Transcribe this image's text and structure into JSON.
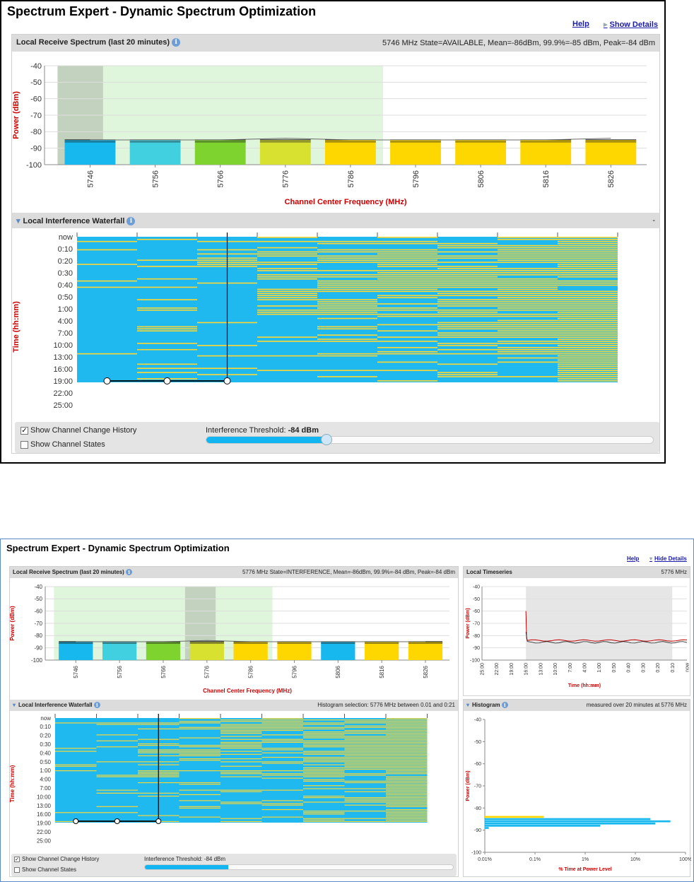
{
  "colors": {
    "blue": "#16b8ee",
    "cyan": "#40d0e0",
    "green": "#7ed32e",
    "lime": "#d8e030",
    "yellow": "#ffd700",
    "wfblue": "#1fb8ef",
    "wfyellow": "#fdd835",
    "axislabel": "#cc0000",
    "link": "#1a1aa6",
    "red": "#c40000"
  },
  "top": {
    "app_title": "Spectrum Expert - Dynamic Spectrum Optimization",
    "help_link": "Help",
    "details_link": "Show Details",
    "spectrum": {
      "title": "Local Receive Spectrum (last 20 minutes)",
      "info_icon": "i",
      "status": "5746 MHz State=AVAILABLE, Mean=-86dBm, 99.9%=-85 dBm, Peak=-84 dBm"
    },
    "waterfall": {
      "title": "Local Interference Waterfall",
      "info_icon": "i",
      "right_text": "-"
    },
    "controls": {
      "history_label": "Show Channel Change History",
      "history_checked": true,
      "states_label": "Show Channel States",
      "states_checked": false,
      "threshold_label": "Interference Threshold: ",
      "threshold_value": "-84 dBm",
      "threshold_fraction": 0.27
    }
  },
  "bottom": {
    "app_title": "Spectrum Expert - Dynamic Spectrum Optimization",
    "help_link": "Help",
    "details_link": "Hide Details",
    "spectrum": {
      "title": "Local Receive Spectrum (last 20 minutes)",
      "info_icon": "i",
      "status": "5776 MHz State=INTERFERENCE, Mean=-86dBm, 99.9%=-84 dBm, Peak=-84 dBm"
    },
    "timeseries": {
      "title": "Local Timeseries",
      "right_text": "5776 MHz"
    },
    "waterfall": {
      "title": "Local Interference Waterfall",
      "info_icon": "i",
      "right_text": "Histogram selection: 5776 MHz between 0.01 and 0:21"
    },
    "histogram": {
      "title": "Histogram",
      "info_icon": "i",
      "right_text": "measured over 20 minutes at 5776 MHz"
    },
    "controls": {
      "history_label": "Show Channel Change History",
      "history_checked": true,
      "states_label": "Show Channel States",
      "states_checked": false,
      "threshold_label": "Interference Threshold: -84 dBm",
      "threshold_fraction": 0.27
    }
  },
  "chart_data": [
    {
      "type": "bar",
      "id": "spectrum-top",
      "xlabel": "Channel Center Frequency (MHz)",
      "ylabel": "Power (dBm)",
      "ylim": [
        -100,
        -40
      ],
      "yticks": [
        "-40",
        "-50",
        "-60",
        "-70",
        "-80",
        "-90",
        "-100"
      ],
      "categories": [
        "5746",
        "5756",
        "5766",
        "5776",
        "5786",
        "5796",
        "5806",
        "5816",
        "5826"
      ],
      "values": [
        -85,
        -85,
        -85,
        -85,
        -85,
        -85,
        -85,
        -85,
        -85
      ],
      "bar_colors": [
        "blue",
        "cyan",
        "green",
        "lime",
        "yellow",
        "yellow",
        "yellow",
        "yellow",
        "yellow"
      ],
      "mean_line": [
        -85,
        -85,
        -85,
        -84,
        -85,
        -85,
        -85,
        -85,
        -84
      ],
      "shaded_channels": [
        0,
        4
      ],
      "selected_channel": 0
    },
    {
      "type": "heatmap",
      "id": "waterfall-top",
      "ylabel": "Time (hh:mm)",
      "time_ticks": [
        "now",
        "0:10",
        "0:20",
        "0:30",
        "0:40",
        "0:50",
        "1:00",
        "4:00",
        "7:00",
        "10:00",
        "13:00",
        "16:00",
        "19:00",
        "22:00",
        "25:00"
      ]
    },
    {
      "type": "bar",
      "id": "spectrum-bottom",
      "xlabel": "Channel Center Frequency (MHz)",
      "ylabel": "Power (dBm)",
      "ylim": [
        -100,
        -40
      ],
      "yticks": [
        "-40",
        "-50",
        "-60",
        "-70",
        "-80",
        "-90",
        "-100"
      ],
      "categories": [
        "5746",
        "5756",
        "5766",
        "5776",
        "5786",
        "5796",
        "5806",
        "5816",
        "5826"
      ],
      "values": [
        -85,
        -85,
        -85,
        -85,
        -85,
        -85,
        -85,
        -85,
        -85
      ],
      "bar_colors": [
        "blue",
        "cyan",
        "green",
        "lime",
        "yellow",
        "yellow",
        "blue",
        "yellow",
        "yellow"
      ],
      "mean_line": [
        -85,
        -85,
        -85,
        -84,
        -85,
        -85,
        -85,
        -85,
        -85
      ],
      "shaded_channels": [
        0,
        4
      ],
      "selected_channel": 3
    },
    {
      "type": "line",
      "id": "timeseries",
      "xlabel": "Time (hh:mm)",
      "ylabel": "Power (dBm)",
      "ylim": [
        -100,
        -40
      ],
      "yticks": [
        "-40",
        "-50",
        "-60",
        "-70",
        "-80",
        "-90",
        "-100"
      ],
      "xticks": [
        "25:00",
        "22:00",
        "19:00",
        "16:00",
        "13:00",
        "10:00",
        "7:00",
        "4:00",
        "1:00",
        "0:50",
        "0:40",
        "0:30",
        "0:20",
        "0:10",
        "now"
      ]
    },
    {
      "type": "heatmap",
      "id": "waterfall-bottom",
      "ylabel": "Time (hh:mm)",
      "time_ticks": [
        "now",
        "0:10",
        "0:20",
        "0:30",
        "0:40",
        "0:50",
        "1:00",
        "4:00",
        "7:00",
        "10:00",
        "13:00",
        "16:00",
        "19:00",
        "22:00",
        "25:00"
      ]
    },
    {
      "type": "bar",
      "id": "histogram",
      "orientation": "horizontal",
      "xlabel": "% Time at Power Level",
      "ylabel": "Power (dBm)",
      "xscale": "log",
      "xticks": [
        "0.01%",
        "0.1%",
        "1%",
        "10%",
        "100%"
      ],
      "yticks": [
        "-40",
        "-50",
        "-60",
        "-70",
        "-80",
        "-90",
        "-100"
      ],
      "bars": [
        {
          "power": -84,
          "percent": 0.15,
          "color": "yellow"
        },
        {
          "power": -85,
          "percent": 20,
          "color": "blue"
        },
        {
          "power": -86,
          "percent": 50,
          "color": "blue"
        },
        {
          "power": -87,
          "percent": 25,
          "color": "blue"
        },
        {
          "power": -88,
          "percent": 2,
          "color": "blue"
        },
        {
          "power": -89,
          "percent": 0.012,
          "color": "blue"
        }
      ]
    }
  ]
}
